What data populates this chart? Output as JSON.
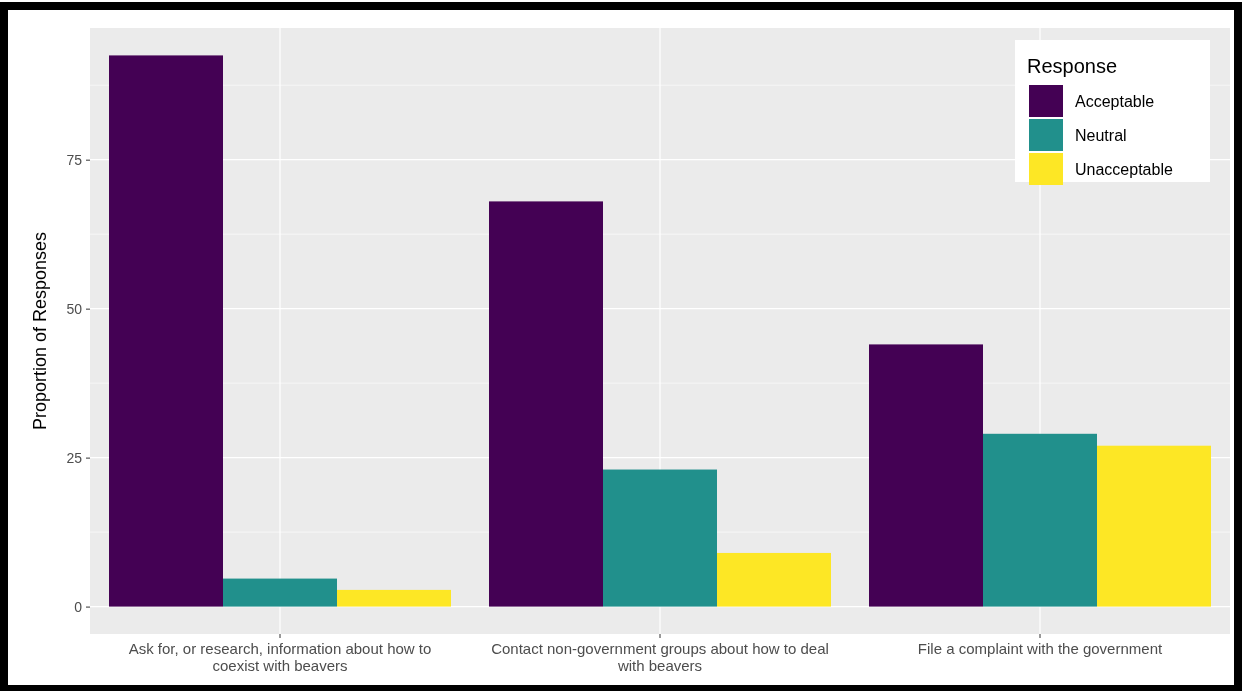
{
  "chart_data": {
    "type": "bar",
    "ylabel": "Proportion of Responses",
    "legend_title": "Response",
    "categories": [
      "Ask for, or research, information about how to coexist with beavers",
      "Contact non-government groups about how to deal with beavers",
      "File a complaint with the government"
    ],
    "series": [
      {
        "name": "Acceptable",
        "color": "#440154",
        "values": [
          92.5,
          68,
          44
        ]
      },
      {
        "name": "Neutral",
        "color": "#21908c",
        "values": [
          4.7,
          23,
          29
        ]
      },
      {
        "name": "Unacceptable",
        "color": "#fde725",
        "values": [
          2.8,
          9,
          27
        ]
      }
    ],
    "ylim": [
      -4.6,
      97.1
    ],
    "yticks": [
      0,
      25,
      50,
      75
    ],
    "grid": true,
    "legend": "top right"
  }
}
